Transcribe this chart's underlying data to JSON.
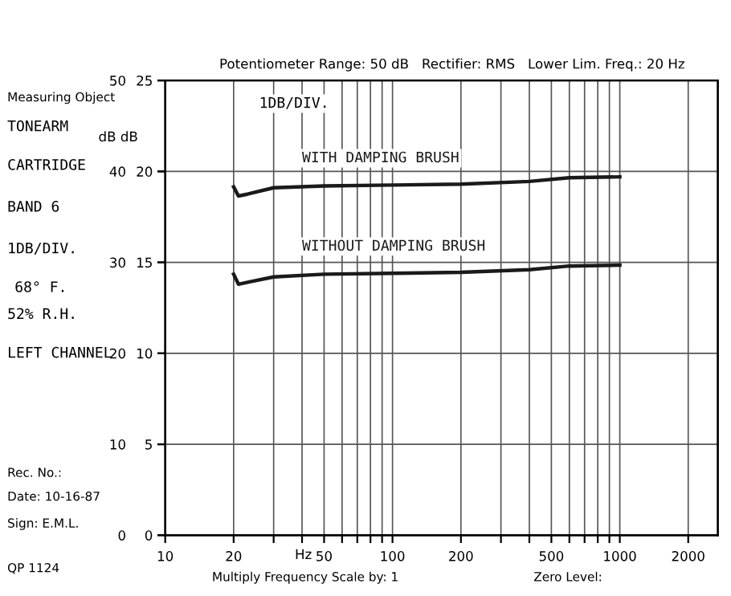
{
  "chart_data": {
    "type": "line",
    "xlabel": "Hz",
    "ylabel": "dB dB",
    "log": "x",
    "grid": true,
    "legend": false,
    "marker": "none",
    "line_style": "solid",
    "xlim": [
      10,
      2700
    ],
    "xticks": [
      10,
      20,
      {
        "value": 30,
        "label": null
      },
      {
        "value": 40,
        "label": null
      },
      50,
      {
        "value": 60,
        "label": null
      },
      {
        "value": 70,
        "label": null
      },
      {
        "value": 80,
        "label": null
      },
      {
        "value": 90,
        "label": null
      },
      100,
      200,
      {
        "value": 300,
        "label": null
      },
      {
        "value": 400,
        "label": null
      },
      500,
      {
        "value": 600,
        "label": null
      },
      {
        "value": 700,
        "label": null
      },
      {
        "value": 800,
        "label": null
      },
      {
        "value": 900,
        "label": null
      },
      1000,
      2000
    ],
    "ylim": [
      0,
      50
    ],
    "yticks": [
      0,
      10,
      20,
      30,
      40,
      50
    ],
    "y2lim": [
      0,
      25
    ],
    "y2ticks": [
      0,
      5,
      10,
      15,
      20,
      25
    ],
    "series": [
      {
        "name": "WITH DAMPING BRUSH",
        "color": "#1a1a1a",
        "x": [
          20,
          21,
          23,
          30,
          50,
          100,
          200,
          400,
          600,
          1000
        ],
        "values": [
          38.3,
          37.3,
          37.5,
          38.2,
          38.4,
          38.5,
          38.6,
          38.9,
          39.3,
          39.4
        ]
      },
      {
        "name": "WITHOUT DAMPING BRUSH",
        "color": "#1a1a1a",
        "x": [
          20,
          21,
          24,
          30,
          50,
          100,
          200,
          400,
          600,
          1000
        ],
        "values": [
          28.7,
          27.6,
          27.9,
          28.4,
          28.7,
          28.8,
          28.9,
          29.2,
          29.6,
          29.7
        ]
      }
    ],
    "annotations": [
      "1DB/DIV.",
      "Potentiometer Range: 50 dB   Rectifier: RMS   Lower Lim. Freq.: 20 Hz",
      "Measuring Object",
      "TONEARM",
      "CARTRIDGE",
      "BAND 6",
      "1DB/DIV.",
      "68° F.",
      "52% R.H.",
      "LEFT CHANNEL",
      "Rec. No.:",
      "Date: 10-16-87",
      "Sign: E.M.L.",
      "QP 1124",
      "Multiply Frequency Scale by: 1",
      "Zero Level:"
    ]
  }
}
